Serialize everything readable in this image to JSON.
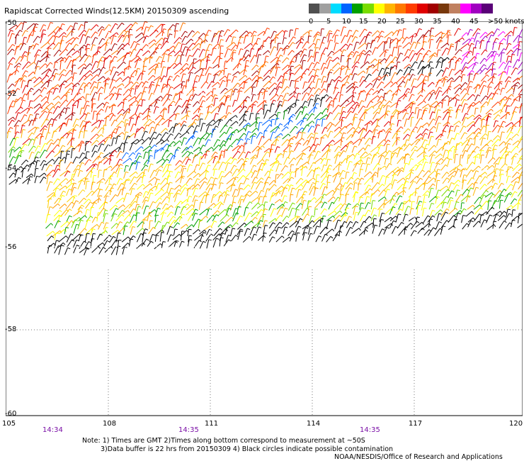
{
  "title": "Rapidscat Corrected Winds(12.5KM) 20150309 ascending",
  "colorbar": {
    "labels": [
      "0",
      "5",
      "10",
      "15",
      "20",
      "25",
      "30",
      "35",
      "40",
      "45",
      ">50 knots"
    ],
    "colors": [
      "#505050",
      "#a0a0a0",
      "#00dcff",
      "#0064ff",
      "#00a000",
      "#78dc00",
      "#ffff00",
      "#ffb400",
      "#ff7800",
      "#ff3c00",
      "#e00000",
      "#a00000",
      "#78380c",
      "#c08060",
      "#ff00ff",
      "#a000c0",
      "#5a0078"
    ]
  },
  "axes": {
    "x_ticks": [
      "105",
      "108",
      "111",
      "114",
      "117",
      "120"
    ],
    "y_ticks": [
      "-50",
      "-52",
      "-54",
      "-56",
      "-58",
      "-60"
    ]
  },
  "times": [
    "14:34",
    "14:35",
    "14:35"
  ],
  "notes": {
    "line1": "Note: 1) Times are GMT 2)Times along bottom correspond to measurement at ~50S",
    "line2": "3)Data buffer is 22 hrs from 20150309 4) Black circles indicate possible contamination",
    "line3": "NOAA/NESDIS/Office of Research and Applications"
  }
}
